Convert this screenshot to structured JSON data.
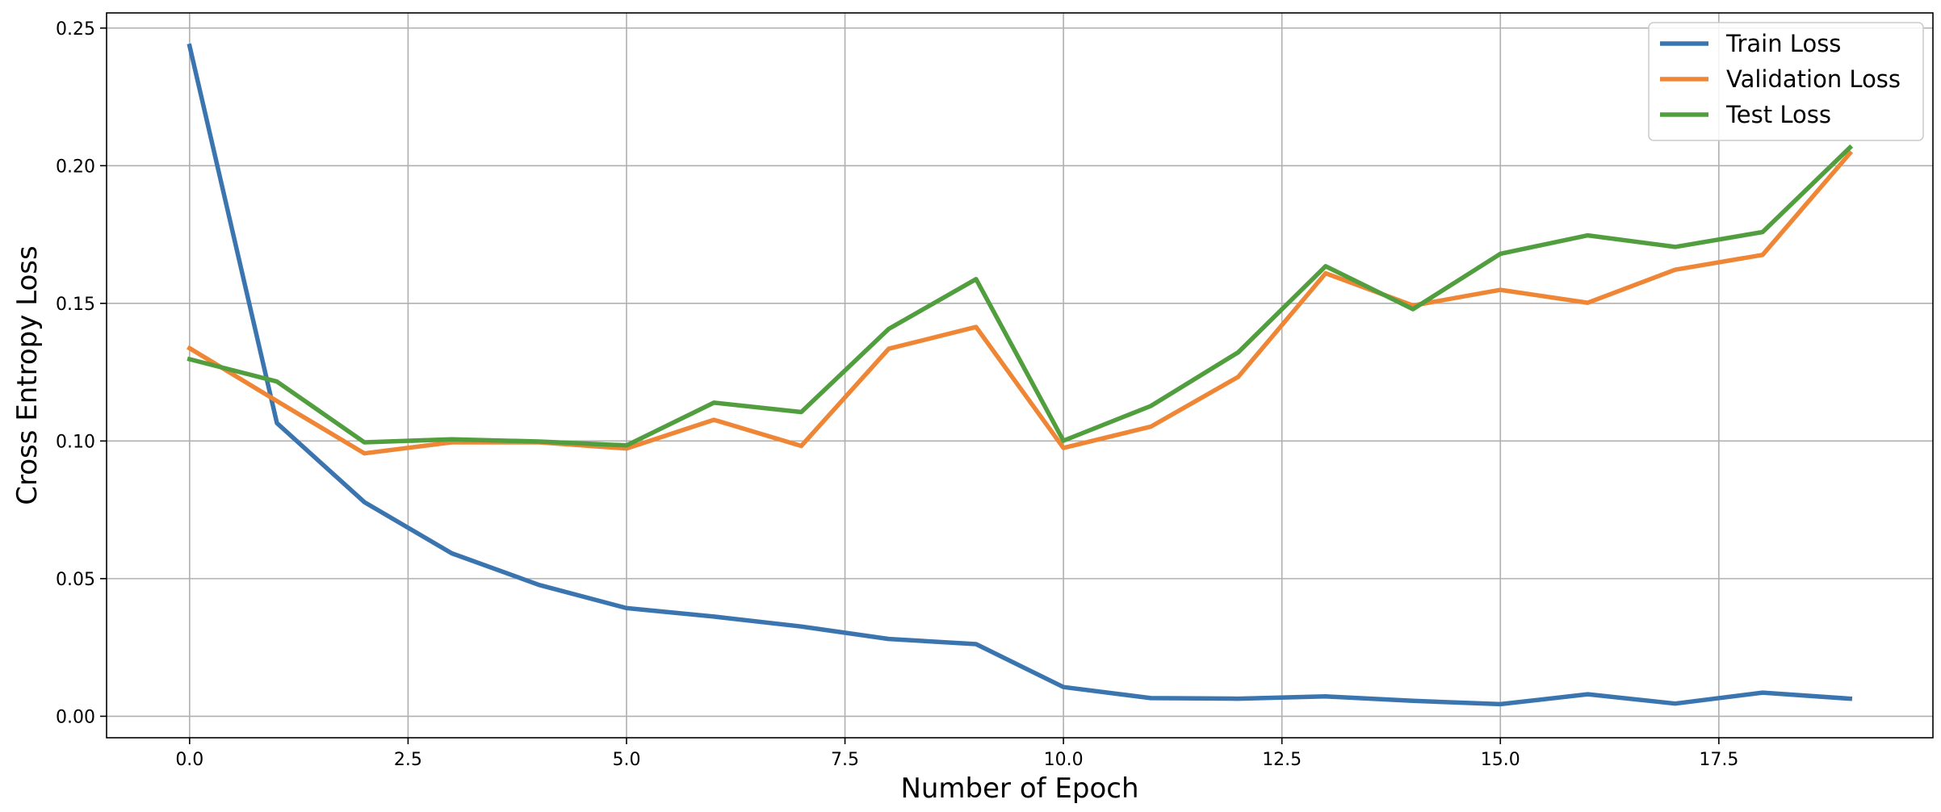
{
  "chart_data": {
    "type": "line",
    "title": "",
    "xlabel": "Number of Epoch",
    "ylabel": "Cross Entropy Loss",
    "xlim": [
      -0.95,
      19.95
    ],
    "ylim": [
      -0.0078,
      0.2555
    ],
    "x_ticks": [
      0.0,
      2.5,
      5.0,
      7.5,
      10.0,
      12.5,
      15.0,
      17.5
    ],
    "x_tick_labels": [
      "0.0",
      "2.5",
      "5.0",
      "7.5",
      "10.0",
      "12.5",
      "15.0",
      "17.5"
    ],
    "y_ticks": [
      0.0,
      0.05,
      0.1,
      0.15,
      0.2,
      0.25
    ],
    "y_tick_labels": [
      "0.00",
      "0.05",
      "0.10",
      "0.15",
      "0.20",
      "0.25"
    ],
    "grid": true,
    "legend_position": "top-right",
    "x": [
      0,
      1,
      2,
      3,
      4,
      5,
      6,
      7,
      8,
      9,
      10,
      11,
      12,
      13,
      14,
      15,
      16,
      17,
      18,
      19
    ],
    "series": [
      {
        "name": "Train Loss",
        "color": "#3a75af",
        "values": [
          0.2435,
          0.1065,
          0.0778,
          0.0592,
          0.0477,
          0.0393,
          0.0362,
          0.0326,
          0.0281,
          0.0262,
          0.0106,
          0.0066,
          0.0064,
          0.0072,
          0.0056,
          0.0044,
          0.008,
          0.0046,
          0.0086,
          0.0064
        ]
      },
      {
        "name": "Validation Loss",
        "color": "#ef8636",
        "values": [
          0.1337,
          0.1145,
          0.0955,
          0.0995,
          0.0995,
          0.0973,
          0.1077,
          0.0982,
          0.1335,
          0.1414,
          0.0975,
          0.1052,
          0.1233,
          0.1609,
          0.1492,
          0.1549,
          0.1502,
          0.1622,
          0.1676,
          0.2045
        ]
      },
      {
        "name": "Test Loss",
        "color": "#519e3e",
        "values": [
          0.1297,
          0.1216,
          0.0995,
          0.1006,
          0.0998,
          0.0984,
          0.1139,
          0.1105,
          0.1407,
          0.1588,
          0.1001,
          0.1127,
          0.1322,
          0.1635,
          0.1479,
          0.168,
          0.1747,
          0.1705,
          0.1759,
          0.2066
        ]
      }
    ]
  }
}
